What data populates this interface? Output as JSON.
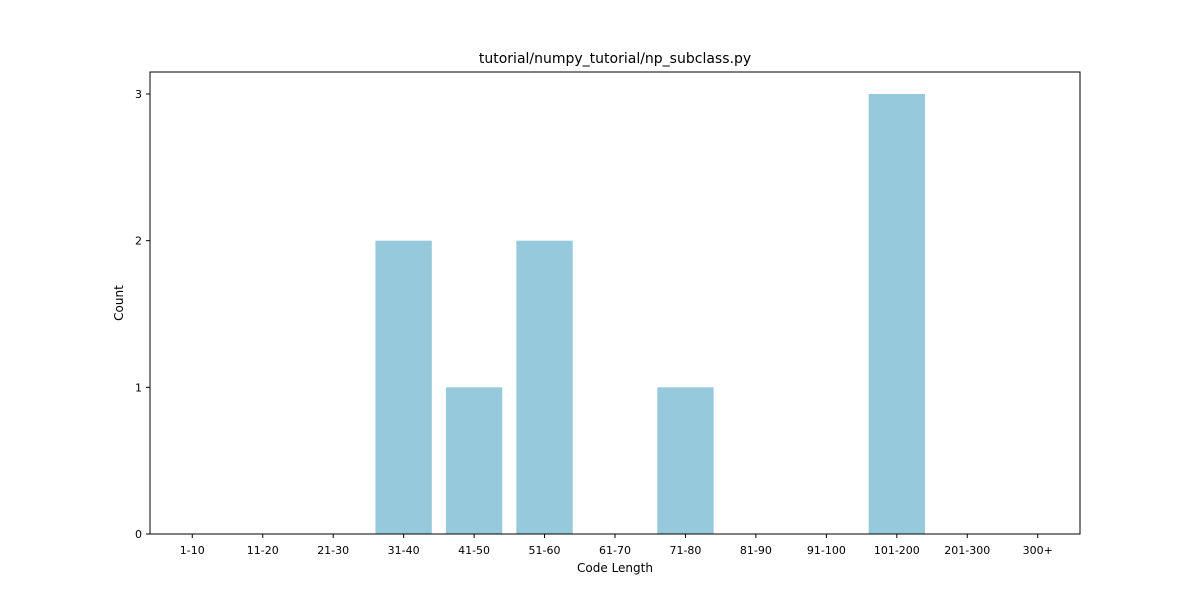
{
  "chart_data": {
    "type": "bar",
    "title": "tutorial/numpy_tutorial/np_subclass.py",
    "xlabel": "Code Length",
    "ylabel": "Count",
    "categories": [
      "1-10",
      "11-20",
      "21-30",
      "31-40",
      "41-50",
      "51-60",
      "61-70",
      "71-80",
      "81-90",
      "91-100",
      "101-200",
      "201-300",
      "300+"
    ],
    "values": [
      0,
      0,
      0,
      2,
      1,
      2,
      0,
      1,
      0,
      0,
      3,
      0,
      0
    ],
    "ylim": [
      0,
      3.15
    ],
    "yticks": [
      0,
      1,
      2,
      3
    ],
    "grid": false,
    "bar_color": "#96c9dc"
  }
}
